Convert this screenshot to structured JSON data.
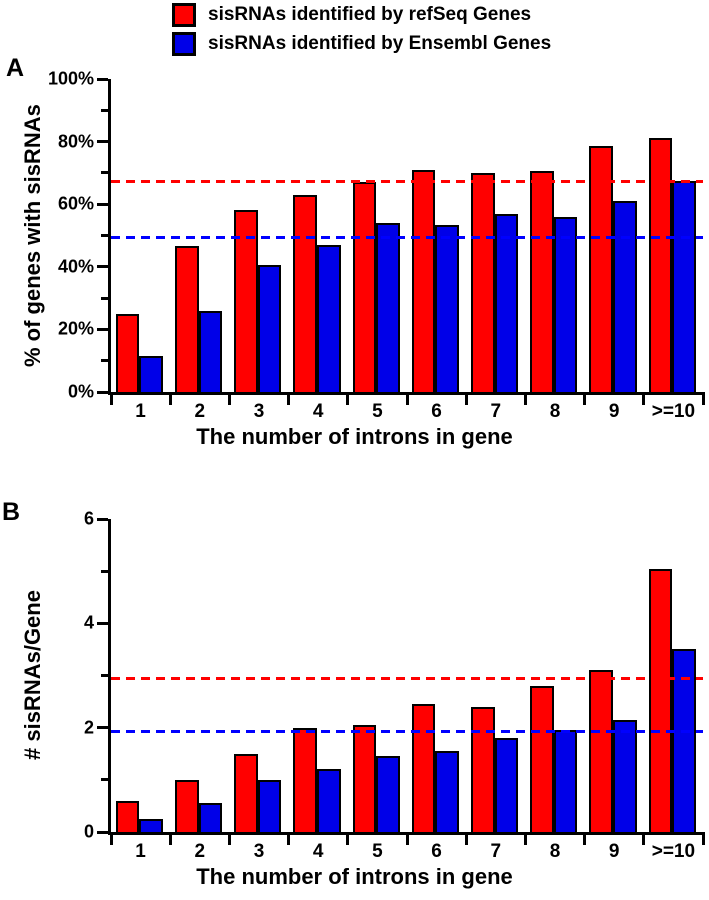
{
  "figure": {
    "background": "#FFFFFF",
    "legend": {
      "items": [
        {
          "id": "refseq",
          "label": "sisRNAs identified by refSeq Genes",
          "color": "#FF0000"
        },
        {
          "id": "ensembl",
          "label": "sisRNAs identified by Ensembl Genes",
          "color": "#0000E8"
        }
      ]
    }
  },
  "chart_data": [
    {
      "type": "bar",
      "panel_label": "A",
      "title": "",
      "categories": [
        "1",
        "2",
        "3",
        "4",
        "5",
        "6",
        "7",
        "8",
        "9",
        ">=10"
      ],
      "series": [
        {
          "name": "sisRNAs identified by refSeq Genes",
          "color": "#FF0000",
          "values": [
            25,
            46.5,
            58,
            63,
            67,
            71,
            70,
            70.5,
            78.5,
            81
          ]
        },
        {
          "name": "sisRNAs identified by Ensembl Genes",
          "color": "#0000E8",
          "values": [
            11.5,
            26,
            40.5,
            47,
            54,
            53.5,
            57,
            56,
            61,
            67.5
          ]
        }
      ],
      "reference_lines": [
        {
          "value": 67.2,
          "color": "#FF0000",
          "style": "dashed"
        },
        {
          "value": 49.5,
          "color": "#0000FF",
          "style": "dashed"
        }
      ],
      "xlabel": "The number of introns in gene",
      "ylabel": "% of genes with sisRNAs",
      "ylim": [
        0,
        100
      ],
      "ytick_values": [
        0,
        20,
        40,
        60,
        80,
        100
      ],
      "ytick_labels": [
        "0%",
        "20%",
        "40%",
        "60%",
        "80%",
        "100%"
      ],
      "yminor_step": 10,
      "grid": false,
      "legend_position": "top-center"
    },
    {
      "type": "bar",
      "panel_label": "B",
      "title": "",
      "categories": [
        "1",
        "2",
        "3",
        "4",
        "5",
        "6",
        "7",
        "8",
        "9",
        ">=10"
      ],
      "series": [
        {
          "name": "sisRNAs identified by refSeq Genes",
          "color": "#FF0000",
          "values": [
            0.6,
            1.0,
            1.5,
            2.0,
            2.05,
            2.45,
            2.4,
            2.8,
            3.1,
            5.05
          ]
        },
        {
          "name": "sisRNAs identified by Ensembl Genes",
          "color": "#0000E8",
          "values": [
            0.25,
            0.55,
            1.0,
            1.2,
            1.45,
            1.55,
            1.8,
            1.95,
            2.15,
            3.5
          ]
        }
      ],
      "reference_lines": [
        {
          "value": 2.95,
          "color": "#FF0000",
          "style": "dashed"
        },
        {
          "value": 1.93,
          "color": "#0000FF",
          "style": "dashed"
        }
      ],
      "xlabel": "The number of introns in gene",
      "ylabel": "# sisRNAs/Gene",
      "ylim": [
        0,
        6
      ],
      "ytick_values": [
        0,
        2,
        4,
        6
      ],
      "ytick_labels": [
        "0",
        "2",
        "4",
        "6"
      ],
      "yminor_step": 1,
      "grid": false,
      "legend_position": "top-center"
    }
  ]
}
